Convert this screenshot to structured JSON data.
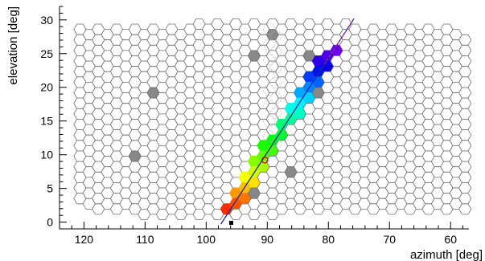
{
  "chart_data": {
    "type": "scatter",
    "title": "",
    "xlabel": "azimuth  [deg]",
    "ylabel": "elevation  [deg]",
    "xlim": [
      124,
      57
    ],
    "ylim": [
      -1,
      32
    ],
    "x_ticks": [
      120,
      110,
      100,
      90,
      80,
      70,
      60
    ],
    "y_ticks": [
      0,
      5,
      10,
      15,
      20,
      25,
      30
    ],
    "grid": false,
    "legend": "none",
    "fit_line": {
      "x": [
        97.6,
        75.8
      ],
      "y": [
        -0.3,
        30.2
      ],
      "color": "#1a2a9c"
    },
    "colors": {
      "hex_outline": "#6f6f6f",
      "saturated_hex": "#888888",
      "axis": "#000000"
    }
  }
}
